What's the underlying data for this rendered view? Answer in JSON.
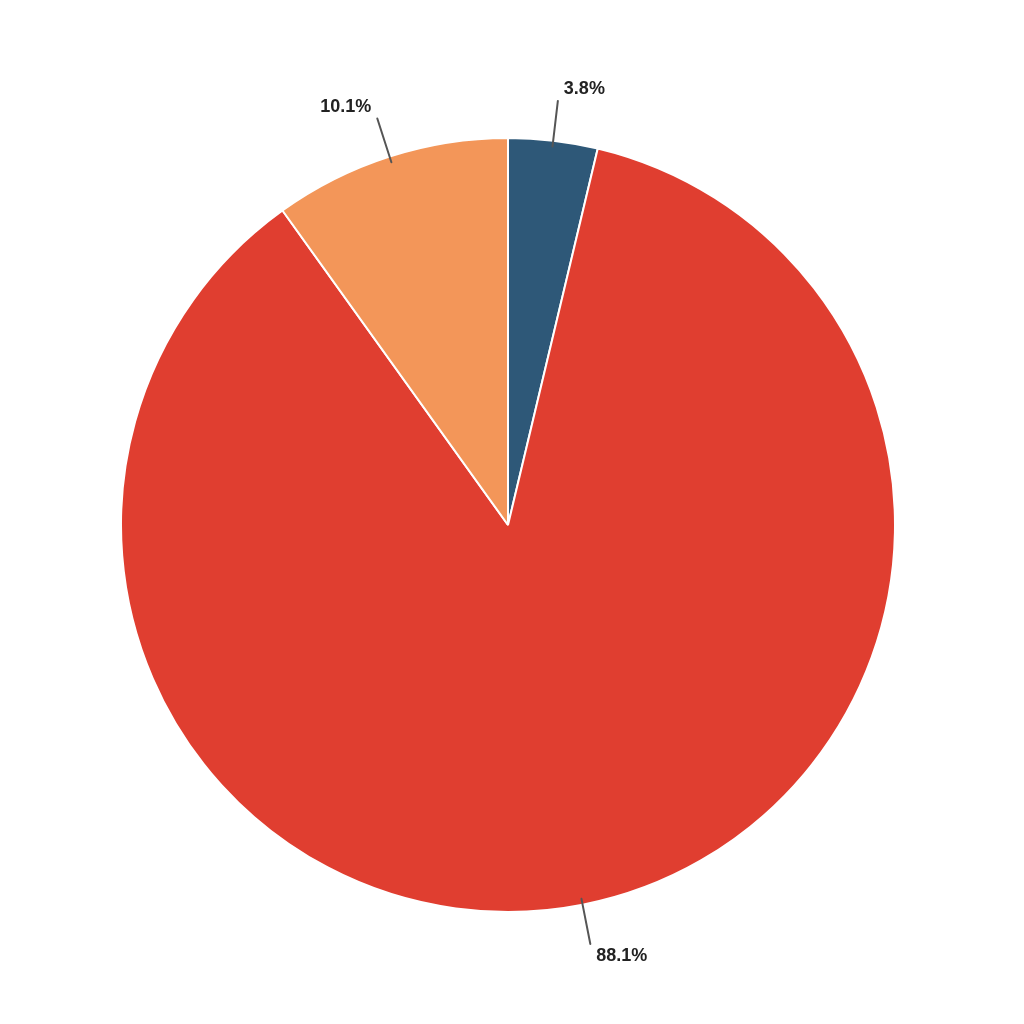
{
  "chart_data": {
    "type": "pie",
    "categories": [
      null,
      null,
      null
    ],
    "values": [
      3.8,
      88.1,
      10.1
    ],
    "colors": [
      "#2e5878",
      "#e03e30",
      "#f39659"
    ],
    "value_labels": [
      "3.8%",
      "88.1%",
      "10.1%"
    ],
    "legend": false
  }
}
